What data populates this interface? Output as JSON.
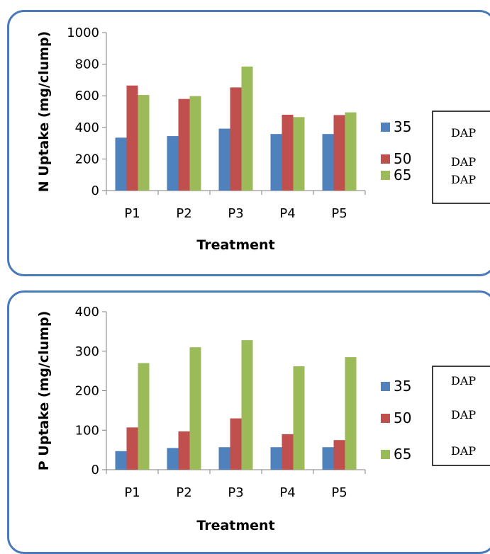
{
  "chart_data": [
    {
      "type": "bar",
      "title": "",
      "xlabel": "Treatment",
      "ylabel": "N Uptake (mg/clump)",
      "categories": [
        "P1",
        "P2",
        "P3",
        "P4",
        "P5"
      ],
      "ylim": [
        0,
        1000
      ],
      "yticks": [
        "0",
        "200",
        "400",
        "600",
        "800",
        "1000"
      ],
      "series": [
        {
          "name": "35",
          "values": [
            335,
            345,
            392,
            358,
            358
          ]
        },
        {
          "name": "50",
          "values": [
            665,
            580,
            653,
            480,
            478
          ]
        },
        {
          "name": "65",
          "values": [
            605,
            598,
            785,
            465,
            495
          ]
        }
      ],
      "legend": {
        "labels": [
          "35",
          "50",
          "65"
        ],
        "box_labels": [
          "DAP",
          "DAP",
          "DAP"
        ],
        "position": "right"
      },
      "grid": false,
      "colors": [
        "#4f81bd",
        "#c0504d",
        "#9bbb59"
      ]
    },
    {
      "type": "bar",
      "title": "",
      "xlabel": "Treatment",
      "ylabel": "P Uptake (mg/clump)",
      "categories": [
        "P1",
        "P2",
        "P3",
        "P4",
        "P5"
      ],
      "ylim": [
        0,
        400
      ],
      "yticks": [
        "0",
        "100",
        "200",
        "300",
        "400"
      ],
      "series": [
        {
          "name": "35",
          "values": [
            47,
            55,
            57,
            57,
            57
          ]
        },
        {
          "name": "50",
          "values": [
            107,
            97,
            130,
            90,
            75
          ]
        },
        {
          "name": "65",
          "values": [
            270,
            310,
            328,
            262,
            285
          ]
        }
      ],
      "legend": {
        "labels": [
          "35",
          "50",
          "65"
        ],
        "box_labels": [
          "DAP",
          "DAP",
          "DAP"
        ],
        "position": "right"
      },
      "grid": false,
      "colors": [
        "#4f81bd",
        "#c0504d",
        "#9bbb59"
      ]
    }
  ]
}
